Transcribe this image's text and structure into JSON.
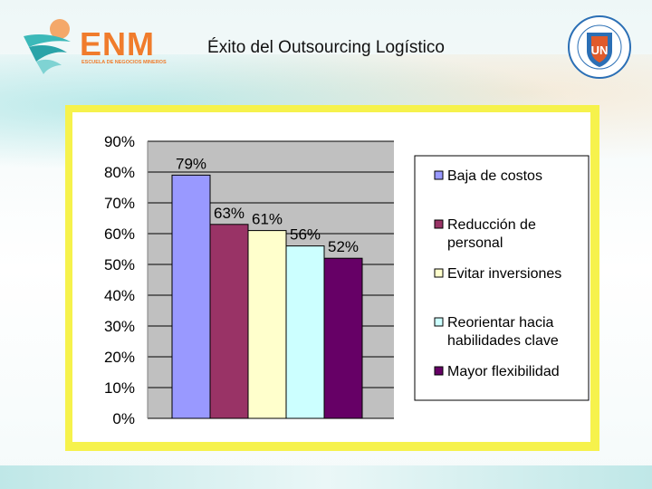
{
  "header": {
    "title": "Éxito del Outsourcing Logístico",
    "left_logo_text": "ENM",
    "left_logo_subtitle": "ESCUELA DE NEGOCIOS MINEROS",
    "right_logo_text": "UNIVERSIDAD CATÓLICA DEL NORTE · CHILE",
    "right_logo_initials": "UN"
  },
  "chart_data": {
    "type": "bar",
    "title": "",
    "xlabel": "",
    "ylabel": "",
    "ylim": [
      0,
      90
    ],
    "y_ticks": [
      "0%",
      "10%",
      "20%",
      "30%",
      "40%",
      "50%",
      "60%",
      "70%",
      "80%",
      "90%"
    ],
    "categories": [
      "Baja de costos",
      "Reducción de personal",
      "Evitar inversiones",
      "Reorientar hacia habilidades clave",
      "Mayor flexibilidad"
    ],
    "values": [
      79,
      63,
      61,
      56,
      52
    ],
    "data_labels": [
      "79%",
      "63%",
      "61%",
      "56%",
      "52%"
    ],
    "colors": [
      "#9999ff",
      "#993366",
      "#ffffcc",
      "#ccffff",
      "#660066"
    ],
    "legend": {
      "position": "right",
      "entries": [
        {
          "lines": [
            "Baja de costos"
          ]
        },
        {
          "lines": [
            "Reducción de",
            "personal"
          ]
        },
        {
          "lines": [
            "Evitar inversiones"
          ]
        },
        {
          "lines": [
            "Reorientar hacia",
            "habilidades clave"
          ]
        },
        {
          "lines": [
            "Mayor flexibilidad"
          ]
        }
      ]
    },
    "grid": true,
    "plot_background": "#c0c0c0",
    "frame_color": "#f6f24c"
  }
}
